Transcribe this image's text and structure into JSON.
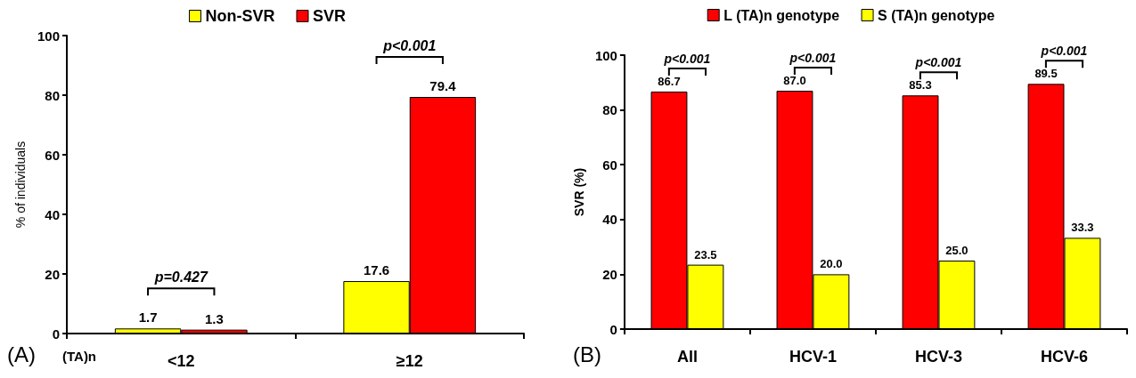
{
  "chart_data": [
    {
      "type": "bar",
      "categories": [
        "<12",
        "≥12"
      ],
      "ylabel": "% of individuals",
      "ylim": [
        0,
        100
      ],
      "yticks": [
        0,
        20,
        40,
        60,
        80,
        100
      ],
      "grid": false,
      "legend": "top",
      "data_labels": true,
      "series": [
        {
          "name": "Non-SVR",
          "color": "#ffff00",
          "values": [
            1.7,
            17.6
          ]
        },
        {
          "name": "SVR",
          "color": "#ff0000",
          "values": [
            1.3,
            79.4
          ]
        }
      ],
      "annotations": [
        "(A)",
        "(TA)n",
        "p=0.427",
        "p<0.001"
      ]
    },
    {
      "type": "bar",
      "categories": [
        "All",
        "HCV-1",
        "HCV-3",
        "HCV-6"
      ],
      "ylabel": "SVR (%)",
      "ylim": [
        0,
        100
      ],
      "yticks": [
        0,
        20,
        40,
        60,
        80,
        100
      ],
      "grid": false,
      "legend": "top",
      "series": [
        {
          "name": "L (TA)n genotype",
          "color": "#ff0000",
          "values": [
            86.7,
            87,
            85.3,
            89.5
          ],
          "value_labels": [
            "86.7",
            "87.0",
            "85.3",
            "89.5"
          ]
        },
        {
          "name": "S (TA)n genotype",
          "color": "#ffff00",
          "values": [
            23.5,
            20,
            25,
            33.3
          ],
          "value_labels": [
            "23.5",
            "20.0",
            "25.0",
            "33.3"
          ]
        }
      ],
      "annotations": [
        "(B)",
        "p<0.001",
        "p<0.001",
        "p<0.001",
        "p<0.001"
      ]
    }
  ]
}
